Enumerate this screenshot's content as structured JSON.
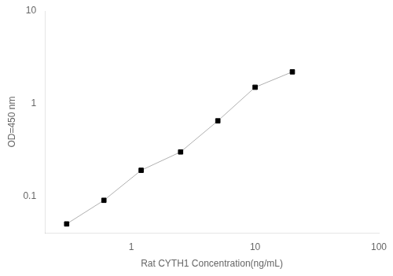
{
  "chart_data": {
    "type": "line",
    "x": [
      0.3,
      0.6,
      1.2,
      2.5,
      5.0,
      10.0,
      20.0
    ],
    "values": [
      0.05,
      0.09,
      0.19,
      0.3,
      0.65,
      1.5,
      2.2
    ],
    "xlabel": "Rat CYTH1 Concentration(ng/mL)",
    "ylabel": "OD=450 nm",
    "xlim": [
      0.2,
      100
    ],
    "ylim": [
      0.04,
      10
    ],
    "xticks": [
      1,
      10,
      100
    ],
    "yticks": [
      0.1,
      1,
      10
    ],
    "log": true,
    "grid": false,
    "color": "#b0b0b0",
    "colors": [
      "black",
      "black",
      "black",
      "black",
      "black",
      "black",
      "black"
    ],
    "marker": "square"
  }
}
